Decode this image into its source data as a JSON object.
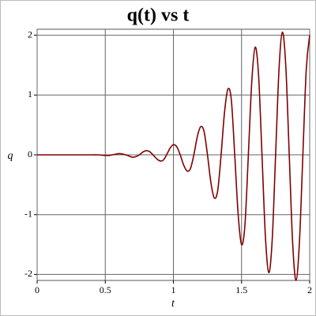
{
  "chart_data": {
    "type": "line",
    "title": "q(t) vs t",
    "x_label": "t",
    "y_label": "q",
    "x": [
      0,
      0.1,
      0.2,
      0.3,
      0.4,
      0.45,
      0.5,
      0.525,
      0.55,
      0.575,
      0.6,
      0.625,
      0.65,
      0.675,
      0.7,
      0.725,
      0.75,
      0.775,
      0.8,
      0.825,
      0.85,
      0.875,
      0.9,
      0.925,
      0.95,
      0.975,
      1.0,
      1.025,
      1.05,
      1.075,
      1.1,
      1.125,
      1.15,
      1.175,
      1.2,
      1.225,
      1.25,
      1.275,
      1.3,
      1.325,
      1.35,
      1.375,
      1.4,
      1.425,
      1.45,
      1.475,
      1.5,
      1.525,
      1.55,
      1.575,
      1.6,
      1.625,
      1.65,
      1.675,
      1.7,
      1.725,
      1.75,
      1.775,
      1.8,
      1.825,
      1.85,
      1.875,
      1.9,
      1.925,
      1.95,
      1.975,
      2.0
    ],
    "series": [
      {
        "name": "q",
        "color": "#800000",
        "values": [
          0,
          0,
          0,
          0,
          0,
          0,
          -0.01,
          -0.01,
          0,
          0.01,
          0.02,
          0.015,
          0,
          -0.02,
          -0.04,
          -0.03,
          0,
          0.045,
          0.07,
          0.055,
          0,
          -0.06,
          -0.1,
          -0.09,
          0,
          0.11,
          0.17,
          0.135,
          0,
          -0.17,
          -0.27,
          -0.23,
          0,
          0.3,
          0.47,
          0.39,
          0,
          -0.46,
          -0.72,
          -0.6,
          0,
          0.71,
          1.1,
          0.92,
          0,
          -0.99,
          -1.5,
          -1.17,
          0,
          1.22,
          1.8,
          1.33,
          0,
          -1.36,
          -1.97,
          -1.42,
          0,
          1.43,
          2.05,
          1.47,
          0,
          -1.47,
          -2.1,
          -1.45,
          0,
          1.43,
          2.0
        ]
      }
    ],
    "xlim": [
      0,
      2
    ],
    "xticks": [
      0,
      0.5,
      1,
      1.5,
      2
    ],
    "ylim": [
      -2.1,
      2.1
    ],
    "yticks": [
      -2,
      -1,
      0,
      1,
      2
    ],
    "grid": true
  }
}
